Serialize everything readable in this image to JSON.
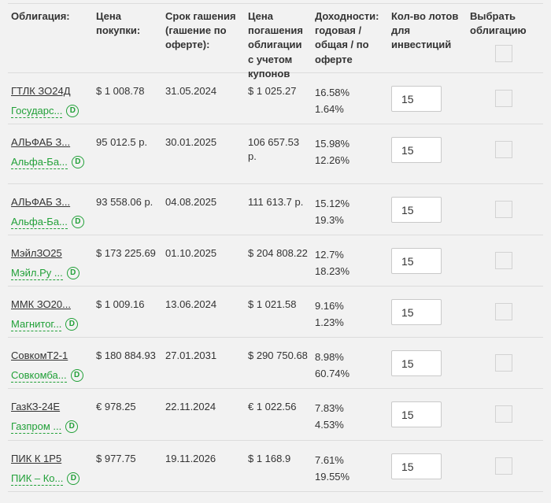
{
  "colors": {
    "accent_green": "#21a038",
    "text": "#333333",
    "background": "#f2f2f2",
    "separator": "#dcdcdc"
  },
  "icons": {
    "disclosure_badge": "D"
  },
  "table": {
    "headers": {
      "bond": "Облигация:",
      "purchase_price": "Цена покупки:",
      "maturity": "Срок гашения (гашение по оферте):",
      "redemption_price": "Цена погашения облигации с учетом купонов",
      "yields": "Доходности: годовая / общая / по оферте",
      "lots": "Кол-во лотов для инвестиций",
      "select": "Выбрать облигацию"
    },
    "rows": [
      {
        "name": "ГТЛК ЗО24Д",
        "issuer": "Государс...",
        "price": "$ 1 008.78",
        "maturity": "31.05.2024",
        "redemption": "$ 1 025.27",
        "yield_annual": "16.58%",
        "yield_total": "1.64%",
        "lots": "15"
      },
      {
        "name": "АЛЬФАБ З...",
        "issuer": "Альфа-Ба...",
        "price": "95 012.5 р.",
        "maturity": "30.01.2025",
        "redemption": "106 657.53 р.",
        "yield_annual": "15.98%",
        "yield_total": "12.26%",
        "lots": "15"
      },
      {
        "name": "АЛЬФАБ З...",
        "issuer": "Альфа-Ба...",
        "price": "93 558.06 р.",
        "maturity": "04.08.2025",
        "redemption": "111 613.7 р.",
        "yield_annual": "15.12%",
        "yield_total": "19.3%",
        "lots": "15"
      },
      {
        "name": "МэйлЗО25",
        "issuer": "Мэйл.Ру ...",
        "price": "$ 173 225.69",
        "maturity": "01.10.2025",
        "redemption": "$ 204 808.22",
        "yield_annual": "12.7%",
        "yield_total": "18.23%",
        "lots": "15"
      },
      {
        "name": "ММК ЗО20...",
        "issuer": "Магнитог...",
        "price": "$ 1 009.16",
        "maturity": "13.06.2024",
        "redemption": "$ 1 021.58",
        "yield_annual": "9.16%",
        "yield_total": "1.23%",
        "lots": "15"
      },
      {
        "name": "СовкомТ2-1",
        "issuer": "Совкомба...",
        "price": "$ 180 884.93",
        "maturity": "27.01.2031",
        "redemption": "$ 290 750.68",
        "yield_annual": "8.98%",
        "yield_total": "60.74%",
        "lots": "15"
      },
      {
        "name": "ГазКЗ-24Е",
        "issuer": "Газпром ...",
        "price": "€ 978.25",
        "maturity": "22.11.2024",
        "redemption": "€ 1 022.56",
        "yield_annual": "7.83%",
        "yield_total": "4.53%",
        "lots": "15"
      },
      {
        "name": "ПИК К 1Р5",
        "issuer": "ПИК – Ко...",
        "price": "$ 977.75",
        "maturity": "19.11.2026",
        "redemption": "$ 1 168.9",
        "yield_annual": "7.61%",
        "yield_total": "19.55%",
        "lots": "15"
      }
    ]
  }
}
